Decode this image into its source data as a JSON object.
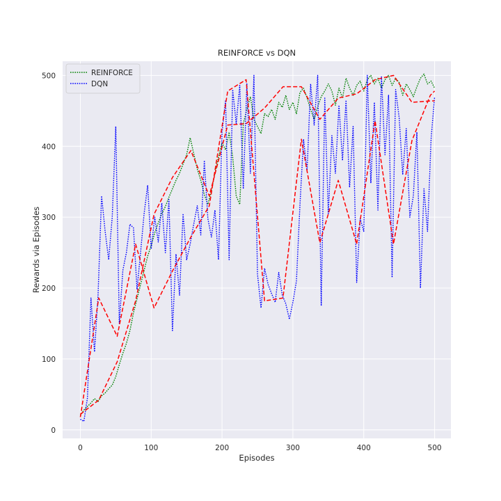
{
  "chart_data": {
    "type": "line",
    "title": "REINFORCE vs DQN",
    "xlabel": "Episodes",
    "ylabel": "Rewards via Episodes",
    "xlim": [
      -25,
      523
    ],
    "ylim": [
      -12,
      520
    ],
    "xticks": [
      0,
      100,
      200,
      300,
      400,
      500
    ],
    "yticks": [
      0,
      100,
      200,
      300,
      400,
      500
    ],
    "grid": true,
    "legend_position": "top-left",
    "style": {
      "background": "#eaeaf2",
      "grid_color": "#ffffff",
      "text_color": "#262626"
    },
    "series": [
      {
        "name": "REINFORCE",
        "color": "#008000",
        "line_style": "dotted",
        "x": [
          0,
          5,
          10,
          15,
          20,
          25,
          30,
          35,
          40,
          45,
          50,
          55,
          60,
          65,
          70,
          75,
          80,
          85,
          90,
          95,
          100,
          105,
          110,
          115,
          120,
          125,
          130,
          135,
          140,
          145,
          150,
          155,
          160,
          165,
          170,
          175,
          180,
          185,
          190,
          195,
          200,
          205,
          210,
          215,
          220,
          225,
          230,
          235,
          240,
          245,
          250,
          255,
          260,
          265,
          270,
          275,
          280,
          285,
          290,
          295,
          300,
          305,
          310,
          315,
          320,
          325,
          330,
          335,
          340,
          345,
          350,
          355,
          360,
          365,
          370,
          375,
          380,
          385,
          390,
          395,
          400,
          405,
          410,
          415,
          420,
          425,
          430,
          435,
          440,
          445,
          450,
          455,
          460,
          465,
          470,
          475,
          480,
          485,
          490,
          495,
          500
        ],
        "values": [
          20,
          28,
          33,
          38,
          44,
          40,
          48,
          52,
          58,
          63,
          75,
          92,
          108,
          122,
          140,
          165,
          185,
          205,
          225,
          245,
          260,
          278,
          292,
          305,
          315,
          328,
          340,
          352,
          362,
          375,
          388,
          412,
          390,
          368,
          352,
          332,
          318,
          338,
          362,
          385,
          405,
          395,
          420,
          385,
          330,
          318,
          432,
          452,
          470,
          438,
          428,
          418,
          446,
          442,
          452,
          438,
          462,
          455,
          472,
          452,
          462,
          446,
          476,
          482,
          468,
          452,
          438,
          456,
          470,
          478,
          488,
          478,
          458,
          482,
          468,
          496,
          482,
          472,
          486,
          492,
          478,
          494,
          500,
          488,
          496,
          482,
          494,
          500,
          486,
          496,
          490,
          472,
          488,
          480,
          470,
          484,
          496,
          502,
          488,
          492,
          482
        ]
      },
      {
        "name": "DQN",
        "color": "#0000ff",
        "line_style": "dotted",
        "x": [
          0,
          5,
          10,
          15,
          20,
          25,
          30,
          35,
          40,
          45,
          50,
          55,
          60,
          65,
          70,
          75,
          80,
          85,
          90,
          95,
          100,
          105,
          110,
          115,
          120,
          125,
          130,
          135,
          140,
          145,
          150,
          155,
          160,
          165,
          170,
          175,
          180,
          185,
          190,
          195,
          200,
          205,
          210,
          215,
          220,
          225,
          230,
          235,
          240,
          245,
          250,
          255,
          260,
          265,
          270,
          275,
          280,
          285,
          290,
          295,
          300,
          305,
          310,
          315,
          320,
          325,
          330,
          335,
          340,
          345,
          350,
          355,
          360,
          365,
          370,
          375,
          380,
          385,
          390,
          395,
          400,
          405,
          410,
          415,
          420,
          425,
          430,
          435,
          440,
          445,
          450,
          455,
          460,
          465,
          470,
          475,
          480,
          485,
          490,
          495,
          500
        ],
        "values": [
          15,
          12,
          45,
          186,
          110,
          190,
          330,
          280,
          240,
          300,
          428,
          150,
          225,
          250,
          290,
          285,
          198,
          250,
          305,
          345,
          255,
          300,
          265,
          320,
          250,
          325,
          140,
          248,
          190,
          305,
          240,
          262,
          290,
          316,
          275,
          380,
          298,
          272,
          310,
          240,
          420,
          465,
          240,
          480,
          432,
          486,
          340,
          488,
          362,
          500,
          220,
          172,
          228,
          205,
          192,
          180,
          222,
          190,
          178,
          156,
          180,
          210,
          318,
          410,
          365,
          488,
          430,
          500,
          175,
          468,
          305,
          415,
          362,
          458,
          380,
          465,
          342,
          428,
          208,
          298,
          280,
          500,
          348,
          462,
          310,
          498,
          388,
          472,
          215,
          480,
          440,
          360,
          425,
          300,
          330,
          420,
          200,
          340,
          280,
          410,
          470
        ]
      },
      {
        "name": "",
        "color": "#ff0000",
        "line_style": "dashed",
        "x": [
          0,
          26,
          52,
          78,
          104,
          130,
          156,
          182,
          208,
          234,
          260,
          286,
          312,
          338,
          364,
          390,
          416,
          442,
          468,
          494,
          500
        ],
        "values": [
          22,
          42,
          96,
          182,
          304,
          356,
          394,
          330,
          430,
          432,
          454,
          484,
          484,
          438,
          468,
          474,
          494,
          500,
          462,
          464,
          464
        ]
      },
      {
        "name": "",
        "color": "#ff0000",
        "line_style": "dashed",
        "x": [
          0,
          26,
          52,
          78,
          104,
          130,
          156,
          182,
          208,
          234,
          260,
          286,
          312,
          338,
          364,
          390,
          416,
          442,
          468,
          494,
          500
        ],
        "values": [
          18,
          186,
          132,
          262,
          172,
          224,
          272,
          316,
          478,
          494,
          182,
          186,
          410,
          264,
          352,
          262,
          436,
          262,
          408,
          472,
          478
        ]
      }
    ]
  }
}
